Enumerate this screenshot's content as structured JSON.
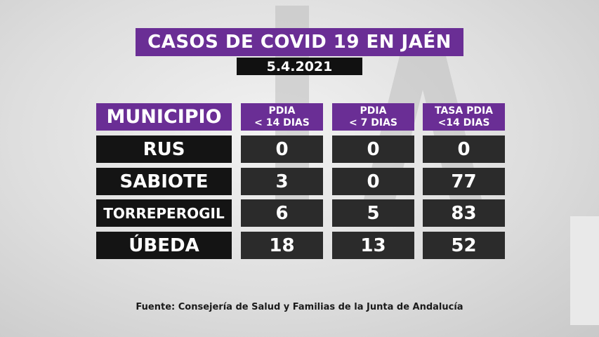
{
  "title": "CASOS DE COVID 19 EN JAÉN",
  "date": "5.4.2021",
  "table": {
    "headers": [
      {
        "line1": "MUNICIPIO",
        "line2": ""
      },
      {
        "line1": "PDIA",
        "line2": "< 14 DIAS"
      },
      {
        "line1": "PDIA",
        "line2": "< 7 DIAS"
      },
      {
        "line1": "TASA PDIA",
        "line2": "<14 DIAS"
      }
    ],
    "rows": [
      {
        "municipio": "RUS",
        "pdia14": "0",
        "pdia7": "0",
        "tasa14": "0"
      },
      {
        "municipio": "SABIOTE",
        "pdia14": "3",
        "pdia7": "0",
        "tasa14": "77"
      },
      {
        "municipio": "TORREPEROGIL",
        "pdia14": "6",
        "pdia7": "5",
        "tasa14": "83"
      },
      {
        "municipio": "ÚBEDA",
        "pdia14": "18",
        "pdia7": "13",
        "tasa14": "52"
      }
    ]
  },
  "source": "Fuente: Consejería de Salud y Familias de la Junta de Andalucía",
  "colors": {
    "header_purple": "#6a2e95",
    "cell_dark": "#141414",
    "cell_value": "#2b2b2b"
  }
}
